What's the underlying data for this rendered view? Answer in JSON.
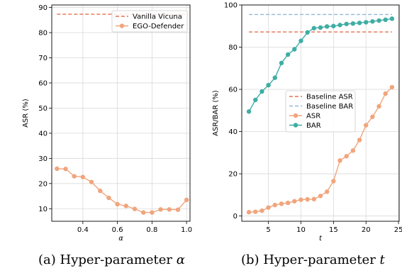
{
  "captions": {
    "a_prefix": "(a) Hyper-parameter ",
    "a_symbol": "α",
    "b_prefix": "(b) Hyper-parameter ",
    "b_symbol": "t"
  },
  "colors": {
    "orange_dashed": "#e4704f",
    "orange": "#f0a57c",
    "teal": "#3fada4",
    "blue_dashed": "#8fb8d8",
    "grid": "#d9d9d9"
  },
  "chart_data": [
    {
      "type": "line",
      "xlabel": "α",
      "ylabel": "ASR (%)",
      "xlim": [
        0.22,
        1.02
      ],
      "ylim": [
        5,
        91
      ],
      "xticks": [
        0.4,
        0.6,
        0.8,
        1.0
      ],
      "xtick_labels": [
        "0.4",
        "0.6",
        "0.8",
        "1.0"
      ],
      "yticks": [
        10,
        20,
        30,
        40,
        50,
        60,
        70,
        80,
        90
      ],
      "grid": true,
      "legend": "top-right",
      "series": [
        {
          "name": "Vanilla Vicuna",
          "style": "dashed",
          "color": "#e4704f",
          "x": [
            0.25,
            1.0
          ],
          "y": [
            87.3,
            87.3
          ]
        },
        {
          "name": "EGO-Defender",
          "style": "line-marker",
          "color": "#f0a57c",
          "x": [
            0.25,
            0.3,
            0.35,
            0.4,
            0.45,
            0.5,
            0.55,
            0.6,
            0.65,
            0.7,
            0.75,
            0.8,
            0.85,
            0.9,
            0.95,
            1.0
          ],
          "y": [
            25.9,
            25.8,
            22.9,
            22.6,
            20.6,
            17.1,
            14.3,
            11.8,
            11.1,
            9.9,
            8.5,
            8.5,
            9.7,
            9.7,
            9.6,
            13.5
          ]
        }
      ]
    },
    {
      "type": "line",
      "xlabel": "t",
      "ylabel": "ASR/BAR (%)",
      "xlim": [
        0.9,
        25.1
      ],
      "ylim": [
        -2.5,
        100
      ],
      "xticks": [
        5,
        10,
        15,
        20,
        25
      ],
      "yticks": [
        0,
        20,
        40,
        60,
        80,
        100
      ],
      "grid": true,
      "legend": "center",
      "series": [
        {
          "name": "Baseline ASR",
          "style": "dashed",
          "color": "#e4704f",
          "x": [
            2,
            24
          ],
          "y": [
            87.2,
            87.2
          ]
        },
        {
          "name": "Baseline BAR",
          "style": "dashed",
          "color": "#8fb8d8",
          "x": [
            2,
            24
          ],
          "y": [
            95.5,
            95.5
          ]
        },
        {
          "name": "ASR",
          "style": "line-marker",
          "color": "#f0a57c",
          "x": [
            2,
            3,
            4,
            5,
            6,
            7,
            8,
            9,
            10,
            11,
            12,
            13,
            14,
            15,
            16,
            17,
            18,
            19,
            20,
            21,
            22,
            23,
            24
          ],
          "y": [
            1.8,
            2.0,
            2.5,
            4.0,
            5.2,
            5.8,
            6.2,
            7.0,
            7.7,
            7.9,
            8.0,
            9.5,
            11.5,
            16.5,
            26.3,
            28.3,
            31.0,
            36.0,
            43.0,
            47.0,
            52.0,
            58.0,
            61.0
          ]
        },
        {
          "name": "BAR",
          "style": "line-marker",
          "color": "#3fada4",
          "x": [
            2,
            3,
            4,
            5,
            6,
            7,
            8,
            9,
            10,
            11,
            12,
            13,
            14,
            15,
            16,
            17,
            18,
            19,
            20,
            21,
            22,
            23,
            24
          ],
          "y": [
            49.5,
            55.0,
            59.0,
            62.0,
            65.5,
            72.5,
            76.5,
            79.0,
            83.0,
            87.0,
            89.0,
            89.3,
            89.8,
            90.0,
            90.5,
            91.0,
            91.2,
            91.5,
            91.8,
            92.2,
            92.6,
            93.0,
            93.5
          ]
        }
      ]
    }
  ]
}
